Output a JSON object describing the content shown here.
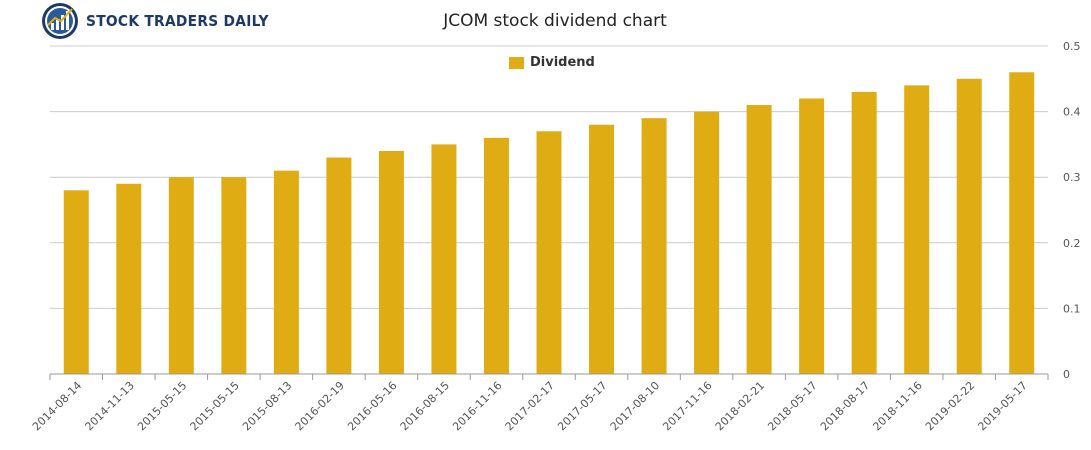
{
  "brand": {
    "name": "STOCK TRADERS DAILY",
    "icon": "chart-globe-logo-icon"
  },
  "colors": {
    "bar": "#e0ac14",
    "grid": "#cccccc",
    "axis_text": "#555555",
    "brand": "#1d3a66"
  },
  "chart_data": {
    "type": "bar",
    "title": "JCOM stock dividend chart",
    "xlabel": "",
    "ylabel": "",
    "categories": [
      "2014-08-14",
      "2014-11-13",
      "2015-05-15",
      "2015-05-15",
      "2015-08-13",
      "2016-02-19",
      "2016-05-16",
      "2016-08-15",
      "2016-11-16",
      "2017-02-17",
      "2017-05-17",
      "2017-08-10",
      "2017-11-16",
      "2018-02-21",
      "2018-05-17",
      "2018-08-17",
      "2018-11-16",
      "2019-02-22",
      "2019-05-17"
    ],
    "series": [
      {
        "name": "Dividend",
        "values": [
          0.28,
          0.29,
          0.3,
          0.3,
          0.31,
          0.33,
          0.34,
          0.35,
          0.36,
          0.37,
          0.38,
          0.39,
          0.4,
          0.41,
          0.42,
          0.43,
          0.44,
          0.45,
          0.46
        ]
      }
    ],
    "ylim": [
      0,
      0.5
    ],
    "yticks": [
      "0",
      "0.1",
      "0.2",
      "0.3",
      "0.4",
      "0.5"
    ],
    "y_axis_side": "right",
    "grid": true,
    "legend_position": "top-center"
  }
}
